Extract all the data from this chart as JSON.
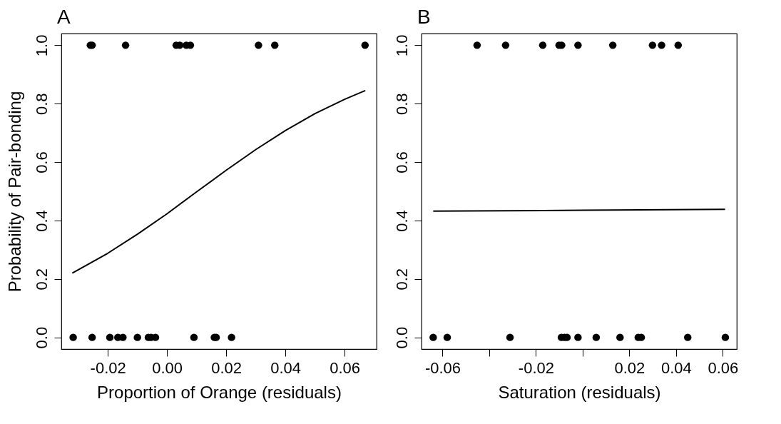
{
  "chart_data": [
    {
      "type": "scatter",
      "title": "A",
      "xlabel": "Proportion of Orange (residuals)",
      "ylabel": "Probability of Pair-bonding",
      "xlim": [
        -0.0357,
        0.0708
      ],
      "xticks": [
        {
          "value": -0.02,
          "label": "-0.02"
        },
        {
          "value": 0,
          "label": "0.00"
        },
        {
          "value": 0.02,
          "label": "0.02"
        },
        {
          "value": 0.04,
          "label": "0.04"
        },
        {
          "value": 0.06,
          "label": "0.06"
        }
      ],
      "ylim": [
        -0.04,
        1.04
      ],
      "yticks": [
        {
          "value": 0,
          "label": "0.0"
        },
        {
          "value": 0.2,
          "label": "0.2"
        },
        {
          "value": 0.4,
          "label": "0.4"
        },
        {
          "value": 0.6,
          "label": "0.6"
        },
        {
          "value": 0.8,
          "label": "0.8"
        },
        {
          "value": 1,
          "label": "1.0"
        }
      ],
      "series": [
        {
          "marker": "circle",
          "color": "#000000",
          "x": [
            -0.0259,
            -0.0253,
            -0.014,
            0.0031,
            0.0043,
            0.0065,
            0.0079,
            0.0309,
            0.0364,
            0.0669,
            -0.0317,
            -0.0253,
            -0.0193,
            -0.0166,
            -0.0149,
            -0.01,
            -0.0063,
            -0.0054,
            -0.0039,
            0.0091,
            0.016,
            0.0166,
            0.0218
          ],
          "values": [
            1,
            1,
            1,
            1,
            1,
            1,
            1,
            1,
            1,
            1,
            0,
            0,
            0,
            0,
            0,
            0,
            0,
            0,
            0,
            0,
            0,
            0,
            0
          ]
        },
        {
          "type": "line",
          "color": "#000000",
          "x": [
            -0.032,
            -0.02,
            -0.01,
            0,
            0.01,
            0.02,
            0.03,
            0.04,
            0.05,
            0.06,
            0.067
          ],
          "values": [
            0.22,
            0.288,
            0.353,
            0.423,
            0.498,
            0.572,
            0.643,
            0.708,
            0.766,
            0.815,
            0.845
          ]
        }
      ]
    },
    {
      "type": "scatter",
      "title": "B",
      "xlabel": "Saturation (residuals)",
      "xlim": [
        -0.069,
        0.066
      ],
      "xticks": [
        {
          "value": -0.06,
          "label": "-0.06"
        },
        {
          "value": -0.04,
          "label": null
        },
        {
          "value": -0.02,
          "label": "-0.02"
        },
        {
          "value": 0,
          "label": null
        },
        {
          "value": 0.02,
          "label": "0.02"
        },
        {
          "value": 0.04,
          "label": "0.04"
        },
        {
          "value": 0.06,
          "label": "0.06"
        }
      ],
      "ylim": [
        -0.04,
        1.04
      ],
      "yticks": [
        {
          "value": 0,
          "label": "0.0"
        },
        {
          "value": 0.2,
          "label": "0.2"
        },
        {
          "value": 0.4,
          "label": "0.4"
        },
        {
          "value": 0.6,
          "label": "0.6"
        },
        {
          "value": 0.8,
          "label": "0.8"
        },
        {
          "value": 1,
          "label": "1.0"
        }
      ],
      "series": [
        {
          "marker": "circle",
          "color": "#000000",
          "x": [
            -0.0452,
            -0.033,
            -0.0171,
            -0.0101,
            -0.009,
            -0.002,
            0.0129,
            0.0299,
            0.0338,
            0.0409,
            -0.064,
            -0.058,
            -0.0311,
            -0.0091,
            -0.0078,
            -0.0067,
            -0.002,
            0.0058,
            0.016,
            0.0238,
            0.0251,
            0.045,
            0.0611
          ],
          "values": [
            1,
            1,
            1,
            1,
            1,
            1,
            1,
            1,
            1,
            1,
            0,
            0,
            0,
            0,
            0,
            0,
            0,
            0,
            0,
            0,
            0,
            0,
            0
          ]
        },
        {
          "type": "line",
          "color": "#000000",
          "x": [
            -0.064,
            0,
            0.061
          ],
          "values": [
            0.432,
            0.435,
            0.438
          ]
        }
      ]
    }
  ]
}
